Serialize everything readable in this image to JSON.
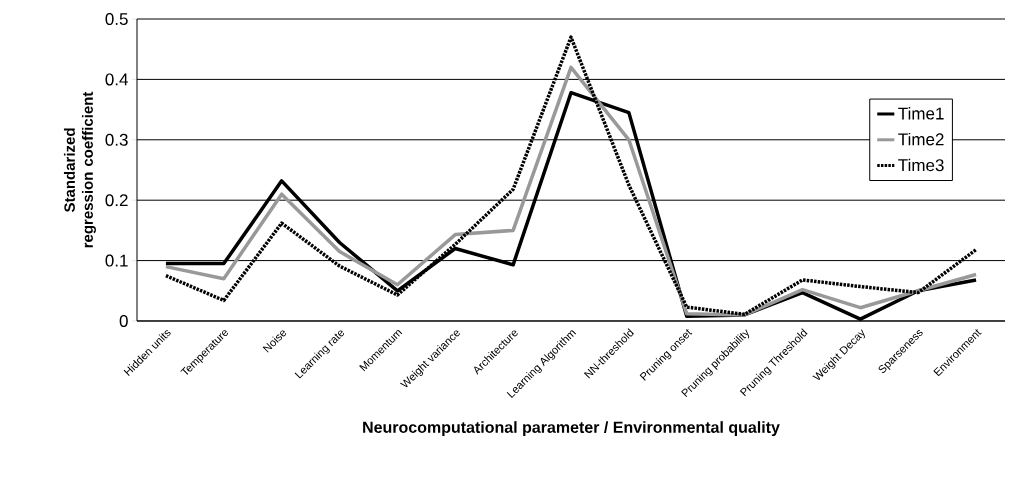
{
  "chart_data": {
    "type": "line",
    "xlabel": "Neurocomputational parameter / Environmental quality",
    "ylabel": "Standarized regression coefficient",
    "categories": [
      "Hidden units",
      "Temperature",
      "Noise",
      "Learning rate",
      "Momentum",
      "Weight variance",
      "Architecture",
      "Learning Algorithm",
      "NN-threshold",
      "Pruning onset",
      "Pruning probability",
      "Pruning Threshold",
      "Weight Decay",
      "Sparseness",
      "Environment"
    ],
    "series": [
      {
        "name": "Time1",
        "color": "#000000",
        "line_style": "solid",
        "values": [
          0.095,
          0.095,
          0.232,
          0.13,
          0.05,
          0.12,
          0.093,
          0.378,
          0.345,
          0.008,
          0.01,
          0.047,
          0.003,
          0.05,
          0.068
        ]
      },
      {
        "name": "Time2",
        "color": "#999999",
        "line_style": "solid",
        "values": [
          0.09,
          0.07,
          0.21,
          0.115,
          0.06,
          0.143,
          0.15,
          0.42,
          0.3,
          0.012,
          0.01,
          0.052,
          0.022,
          0.05,
          0.077
        ]
      },
      {
        "name": "Time3",
        "color": "#000000",
        "line_style": "dotted",
        "values": [
          0.075,
          0.034,
          0.162,
          0.091,
          0.043,
          0.127,
          0.218,
          0.47,
          0.225,
          0.023,
          0.011,
          0.068,
          0.057,
          0.047,
          0.118
        ]
      }
    ],
    "ylim": [
      0,
      0.5
    ],
    "yticks": [
      0,
      0.1,
      0.2,
      0.3,
      0.4,
      0.5
    ],
    "grid": "y",
    "legend": "right"
  }
}
